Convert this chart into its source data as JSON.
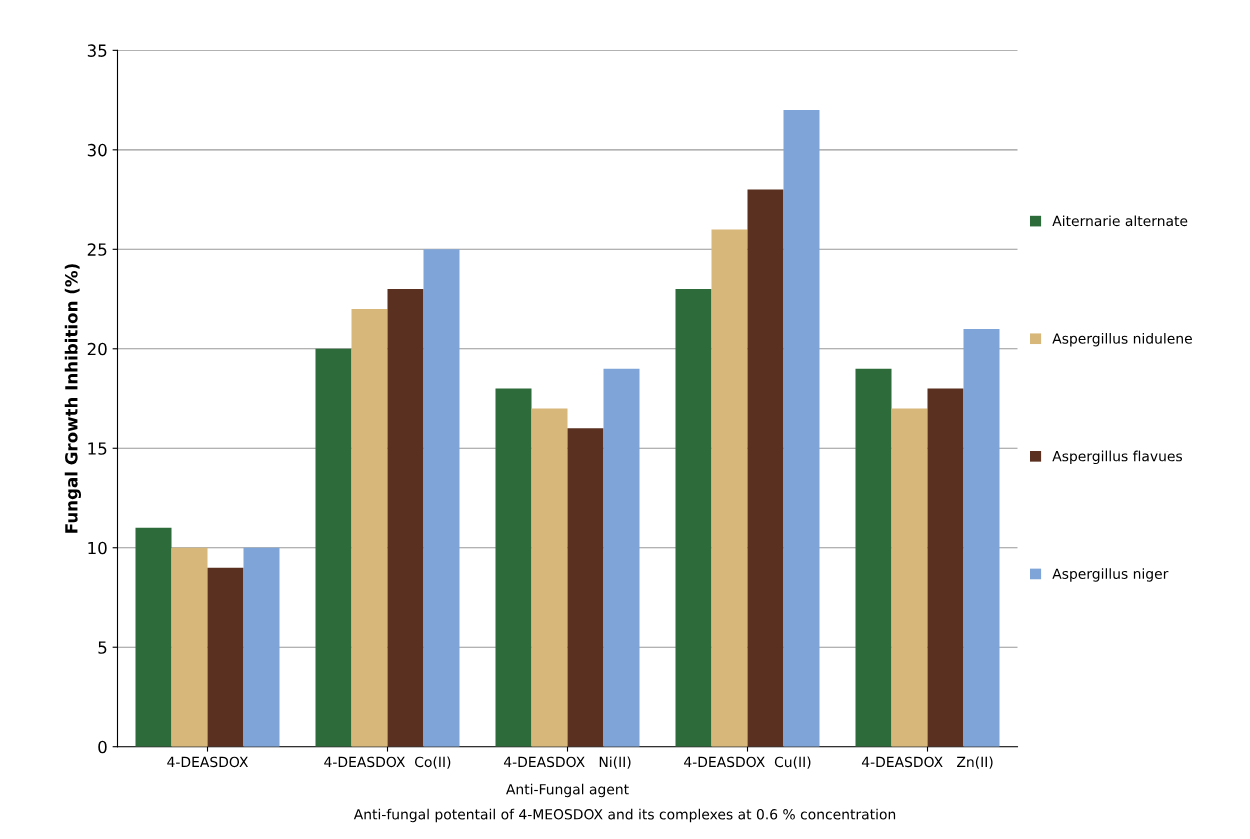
{
  "chart_data": {
    "type": "bar",
    "ylabel": "Fungal Growth Inhibition (%)",
    "xlabel": "Anti-Fungal agent",
    "categories": [
      "4-DEASDOX",
      "4-DEASDOX  Co(II)",
      "4-DEASDOX   Ni(II)",
      "4-DEASDOX  Cu(II)",
      "4-DEASDOX   Zn(II)"
    ],
    "series": [
      {
        "name": "Aiternarie alternate",
        "color": "#2e6b3a",
        "values": [
          11,
          20,
          18,
          23,
          19
        ]
      },
      {
        "name": "Aspergillus nidulene",
        "color": "#d8b87a",
        "values": [
          10,
          22,
          17,
          26,
          17
        ]
      },
      {
        "name": "Aspergillus flavues",
        "color": "#5a3020",
        "values": [
          9,
          23,
          16,
          28,
          18
        ]
      },
      {
        "name": "Aspergillus niger",
        "color": "#7fa4d8",
        "values": [
          10,
          25,
          19,
          32,
          21
        ]
      }
    ],
    "ylim": [
      0,
      35
    ],
    "yticks": [
      0,
      5,
      10,
      15,
      20,
      25,
      30,
      35
    ],
    "grid": "y",
    "legend": "right",
    "annotations": [
      "Anti-fungal potentail of 4-MEOSDOX and its complexes at 0.6 % concentration"
    ]
  }
}
